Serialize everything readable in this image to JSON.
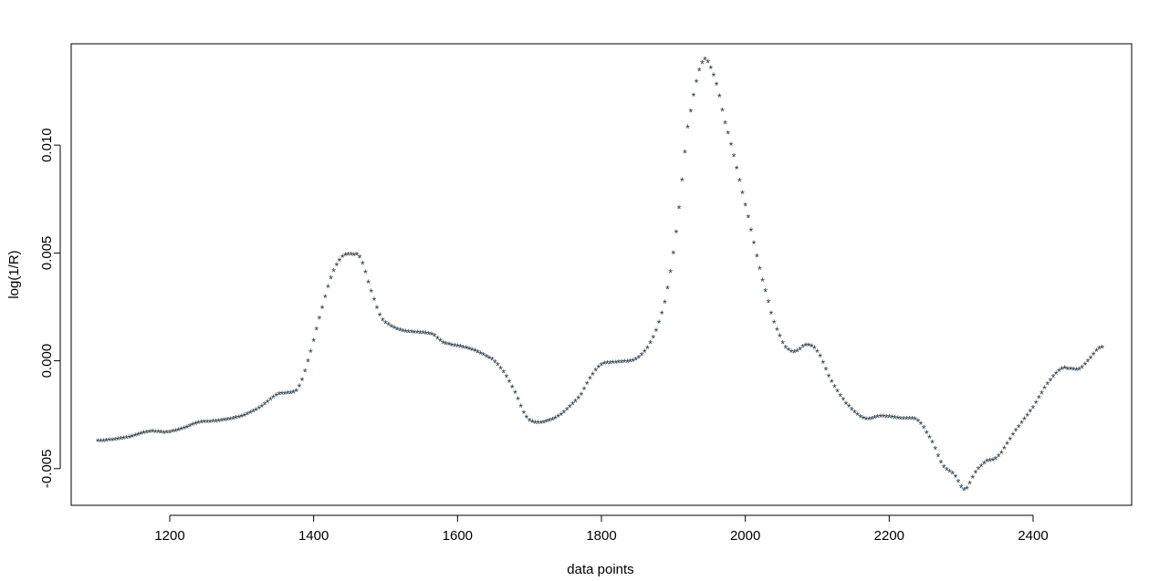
{
  "chart_data": {
    "type": "scatter",
    "title": "",
    "xlabel": "data points",
    "ylabel": "log(1/R)",
    "xlim": [
      1063,
      2537
    ],
    "ylim": [
      -0.0067,
      0.0147
    ],
    "xticks": [
      1200,
      1400,
      1600,
      1800,
      2000,
      2200,
      2400
    ],
    "yticks": [
      -0.005,
      0.0,
      0.005,
      0.01
    ],
    "xtick_labels": [
      "1200",
      "1400",
      "1600",
      "1800",
      "2000",
      "2200",
      "2400"
    ],
    "ytick_labels": [
      "-0.005",
      "0.000",
      "0.005",
      "0.010"
    ],
    "marker": "*",
    "marker_color": "#1a2e3a",
    "grid": false,
    "legend": "none",
    "x_step": 4,
    "x_range": [
      1100,
      2498
    ],
    "series": [
      {
        "name": "",
        "keypoints": [
          [
            1100,
            -0.00375
          ],
          [
            1140,
            -0.0036
          ],
          [
            1160,
            -0.0034
          ],
          [
            1175,
            -0.0033
          ],
          [
            1195,
            -0.00335
          ],
          [
            1215,
            -0.0032
          ],
          [
            1240,
            -0.0029
          ],
          [
            1270,
            -0.0028
          ],
          [
            1300,
            -0.0026
          ],
          [
            1325,
            -0.0022
          ],
          [
            1350,
            -0.0016
          ],
          [
            1370,
            -0.0015
          ],
          [
            1380,
            -0.0012
          ],
          [
            1395,
            0.0003
          ],
          [
            1410,
            0.0022
          ],
          [
            1425,
            0.0039
          ],
          [
            1440,
            0.0048
          ],
          [
            1455,
            0.0049
          ],
          [
            1465,
            0.0047
          ],
          [
            1480,
            0.0032
          ],
          [
            1495,
            0.0019
          ],
          [
            1520,
            0.0014
          ],
          [
            1540,
            0.0013
          ],
          [
            1565,
            0.0012
          ],
          [
            1580,
            0.0008
          ],
          [
            1620,
            0.0005
          ],
          [
            1650,
            0.0
          ],
          [
            1665,
            -0.0006
          ],
          [
            1680,
            -0.0015
          ],
          [
            1695,
            -0.0026
          ],
          [
            1710,
            -0.0029
          ],
          [
            1740,
            -0.0026
          ],
          [
            1770,
            -0.0017
          ],
          [
            1785,
            -0.0008
          ],
          [
            1800,
            -0.0002
          ],
          [
            1820,
            -0.0001
          ],
          [
            1845,
            0.0
          ],
          [
            1860,
            0.0004
          ],
          [
            1875,
            0.0013
          ],
          [
            1890,
            0.003
          ],
          [
            1905,
            0.0062
          ],
          [
            1920,
            0.0108
          ],
          [
            1940,
            0.0138
          ],
          [
            1955,
            0.0133
          ],
          [
            1970,
            0.0112
          ],
          [
            2000,
            0.0072
          ],
          [
            2030,
            0.003
          ],
          [
            2050,
            0.001
          ],
          [
            2060,
            0.0005
          ],
          [
            2070,
            0.0004
          ],
          [
            2085,
            0.0007
          ],
          [
            2100,
            0.0004
          ],
          [
            2120,
            -0.001
          ],
          [
            2140,
            -0.002
          ],
          [
            2165,
            -0.0027
          ],
          [
            2190,
            -0.0026
          ],
          [
            2215,
            -0.0027
          ],
          [
            2240,
            -0.0028
          ],
          [
            2260,
            -0.0038
          ],
          [
            2275,
            -0.0049
          ],
          [
            2290,
            -0.0053
          ],
          [
            2305,
            -0.006
          ],
          [
            2320,
            -0.0052
          ],
          [
            2335,
            -0.0047
          ],
          [
            2350,
            -0.0045
          ],
          [
            2375,
            -0.0033
          ],
          [
            2400,
            -0.0022
          ],
          [
            2420,
            -0.0011
          ],
          [
            2440,
            -0.0004
          ],
          [
            2450,
            -0.0004
          ],
          [
            2465,
            -0.0004
          ],
          [
            2480,
            0.0001
          ],
          [
            2490,
            0.0005
          ],
          [
            2498,
            0.0006
          ]
        ]
      }
    ]
  }
}
